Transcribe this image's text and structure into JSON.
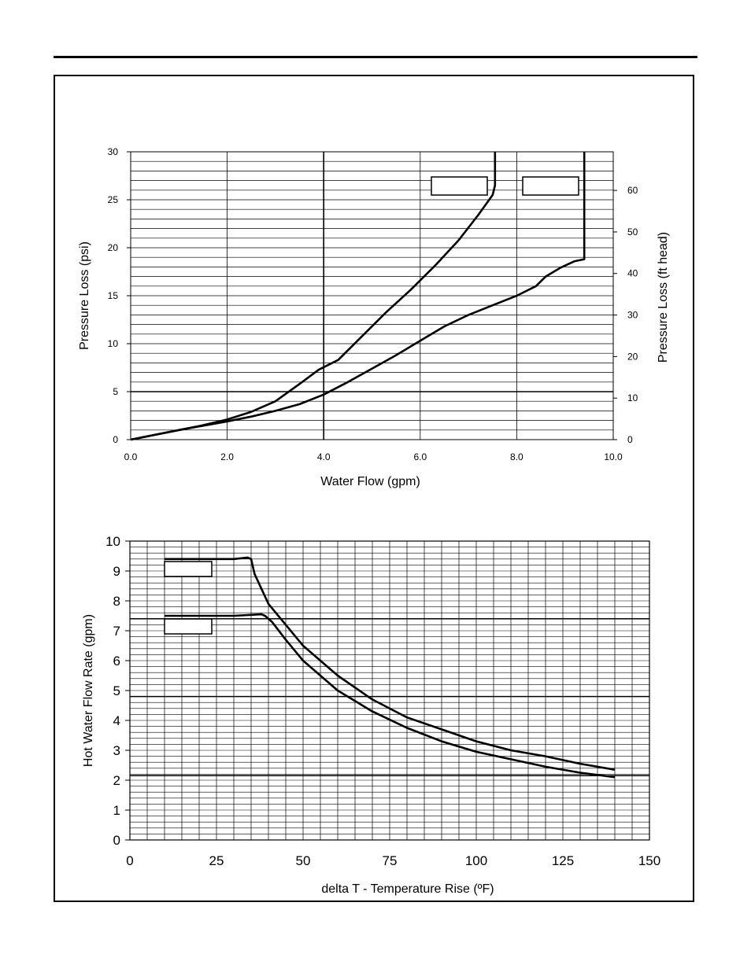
{
  "chart_data": [
    {
      "type": "line",
      "title": "",
      "xlabel": "Water Flow (gpm)",
      "ylabel": "Pressure Loss (psi)",
      "y2label": "Pressure Loss (ft head)",
      "xlim": [
        0,
        10
      ],
      "ylim": [
        0,
        30
      ],
      "y2lim": [
        0,
        69.3
      ],
      "x_ticks": [
        "0.0",
        "2.0",
        "4.0",
        "6.0",
        "8.0",
        "10.0"
      ],
      "y_ticks": [
        "0",
        "5",
        "10",
        "15",
        "20",
        "25",
        "30"
      ],
      "y2_ticks": [
        "0",
        "10",
        "20",
        "30",
        "40",
        "50",
        "60"
      ],
      "grid": true,
      "legend_boxes": 2,
      "series": [
        {
          "x": [
            0,
            0.5,
            1.0,
            1.5,
            2.0,
            2.5,
            3.0,
            3.5,
            3.9,
            4.3,
            4.8,
            5.3,
            5.8,
            6.3,
            6.8,
            7.2,
            7.5,
            7.55,
            7.55
          ],
          "values": [
            0,
            0.5,
            1.0,
            1.5,
            2.1,
            2.9,
            4.0,
            5.8,
            7.3,
            8.3,
            10.8,
            13.3,
            15.6,
            18.1,
            20.8,
            23.4,
            25.5,
            26.5,
            30
          ]
        },
        {
          "x": [
            0,
            1.0,
            2.0,
            2.5,
            3.0,
            3.5,
            4.0,
            4.5,
            5.0,
            5.5,
            6.0,
            6.5,
            7.0,
            7.5,
            8.0,
            8.4,
            8.6,
            8.9,
            9.2,
            9.4,
            9.4,
            9.4
          ],
          "values": [
            0,
            1.0,
            1.9,
            2.4,
            3.0,
            3.7,
            4.7,
            6.0,
            7.4,
            8.8,
            10.3,
            11.8,
            13.0,
            14.0,
            15.0,
            16.0,
            17.0,
            17.9,
            18.6,
            18.8,
            25,
            30
          ]
        }
      ]
    },
    {
      "type": "line",
      "title": "",
      "xlabel": "delta T - Temperature Rise (ºF)",
      "ylabel": "Hot Water Flow Rate (gpm)",
      "xlim": [
        0,
        150
      ],
      "ylim": [
        0,
        10
      ],
      "x_ticks": [
        "0",
        "25",
        "50",
        "75",
        "100",
        "125",
        "150"
      ],
      "y_ticks": [
        "0",
        "1",
        "2",
        "3",
        "4",
        "5",
        "6",
        "7",
        "8",
        "9",
        "10"
      ],
      "grid": true,
      "legend_boxes": 2,
      "series": [
        {
          "x": [
            10,
            30,
            34,
            35,
            36,
            40,
            45,
            50,
            60,
            70,
            80,
            90,
            100,
            110,
            120,
            130,
            140
          ],
          "values": [
            9.4,
            9.4,
            9.45,
            9.4,
            8.9,
            7.9,
            7.2,
            6.5,
            5.5,
            4.7,
            4.1,
            3.7,
            3.3,
            3.0,
            2.8,
            2.55,
            2.35
          ]
        },
        {
          "x": [
            10,
            30,
            38,
            39,
            41,
            45,
            50,
            60,
            70,
            80,
            90,
            100,
            110,
            120,
            130,
            140
          ],
          "values": [
            7.5,
            7.5,
            7.55,
            7.5,
            7.3,
            6.7,
            6.0,
            5.0,
            4.3,
            3.75,
            3.3,
            2.95,
            2.7,
            2.45,
            2.25,
            2.1
          ]
        }
      ]
    }
  ]
}
